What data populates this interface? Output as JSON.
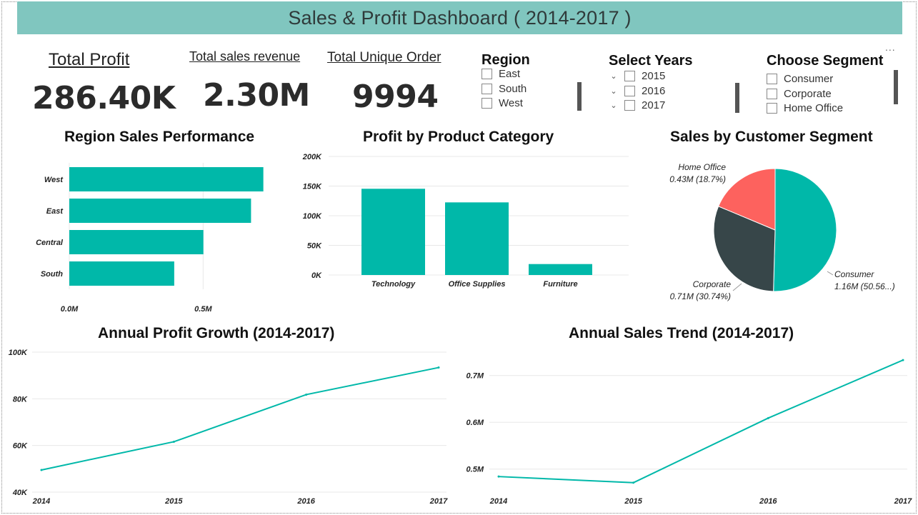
{
  "title": "Sales & Profit Dashboard ( 2014-2017 )",
  "kpis": {
    "total_profit": {
      "label": "Total Profit",
      "value": "286.40K"
    },
    "total_sales": {
      "label": "Total sales revenue",
      "value": "2.30M"
    },
    "unique_orders": {
      "label": "Total Unique Order",
      "value": "9994"
    }
  },
  "slicers": {
    "region": {
      "title": "Region",
      "items": [
        "East",
        "South",
        "West"
      ]
    },
    "years": {
      "title": "Select Years",
      "items": [
        "2015",
        "2016",
        "2017"
      ]
    },
    "segment": {
      "title": "Choose Segment",
      "items": [
        "Consumer",
        "Corporate",
        "Home Office"
      ]
    }
  },
  "more_options": "...",
  "colors": {
    "accent": "#00b8a9",
    "header": "#80c6bf",
    "dark": "#374649",
    "coral": "#fd625e"
  },
  "chart_data": [
    {
      "type": "bar",
      "orientation": "horizontal",
      "title": "Region Sales Performance",
      "categories": [
        "West",
        "East",
        "Central",
        "South"
      ],
      "values": [
        0.725,
        0.679,
        0.501,
        0.392
      ],
      "unit": "M",
      "xlim": [
        0,
        0.75
      ],
      "xticks": [
        0,
        0.5
      ],
      "xtick_labels": [
        "0.0M",
        "0.5M"
      ]
    },
    {
      "type": "bar",
      "title": "Profit by Product Category",
      "categories": [
        "Technology",
        "Office Supplies",
        "Furniture"
      ],
      "values": [
        145.45,
        122.49,
        18.45
      ],
      "unit": "K",
      "ylim": [
        0,
        200
      ],
      "yticks": [
        0,
        50,
        100,
        150,
        200
      ],
      "ytick_labels": [
        "0K",
        "50K",
        "100K",
        "150K",
        "200K"
      ]
    },
    {
      "type": "pie",
      "title": "Sales by Customer Segment",
      "slices": [
        {
          "name": "Consumer",
          "value": 1.16,
          "label": "Consumer",
          "detail": "1.16M (50.56...)"
        },
        {
          "name": "Corporate",
          "value": 0.71,
          "label": "Corporate",
          "detail": "0.71M (30.74%)"
        },
        {
          "name": "Home Office",
          "value": 0.43,
          "label": "Home Office",
          "detail": "0.43M (18.7%)"
        }
      ]
    },
    {
      "type": "line",
      "title": "Annual Profit Growth (2014-2017)",
      "x": [
        "2014",
        "2015",
        "2016",
        "2017"
      ],
      "values": [
        49.5,
        61.6,
        81.8,
        93.4
      ],
      "unit": "K",
      "ylim": [
        40,
        100
      ],
      "yticks": [
        40,
        60,
        80,
        100
      ],
      "ytick_labels": [
        "40K",
        "60K",
        "80K",
        "100K"
      ]
    },
    {
      "type": "line",
      "title": "Annual Sales Trend (2014-2017)",
      "x": [
        "2014",
        "2015",
        "2016",
        "2017"
      ],
      "values": [
        0.484,
        0.471,
        0.609,
        0.733
      ],
      "unit": "M",
      "ylim": [
        0.44,
        0.75
      ],
      "yticks": [
        0.5,
        0.6,
        0.7
      ],
      "ytick_labels": [
        "0.5M",
        "0.6M",
        "0.7M"
      ]
    }
  ]
}
